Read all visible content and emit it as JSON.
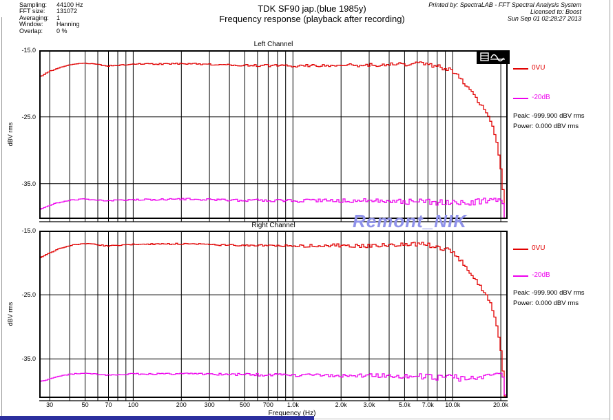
{
  "header": {
    "params": [
      {
        "label": "Sampling:",
        "value": "44100 Hz"
      },
      {
        "label": "FFT size:",
        "value": "131072"
      },
      {
        "label": "Averaging:",
        "value": "1"
      },
      {
        "label": "Window:",
        "value": "Hanning"
      },
      {
        "label": "Overlap:",
        "value": "0 %"
      }
    ],
    "title_line1": "TDK SF90 jap.(blue 1985y)",
    "title_line2": "Frequency response (playback after recording)",
    "print_info": [
      "Printed by: SpectraLAB - FFT Spectral Analysis System",
      "Licensed to: Boost",
      "Sun Sep 01 02:28:27 2013"
    ]
  },
  "watermark": {
    "text": "Remont_NIK",
    "color": "#8f92ea"
  },
  "colors": {
    "trace_red": "#e10000",
    "trace_magenta": "#ee00ee",
    "grid": "#000000",
    "footer_bar": "#2c2f9e"
  },
  "xaxis": {
    "label": "Frequency (Hz)",
    "scale": "log",
    "range_hz": [
      25.8,
      22100
    ],
    "ticks": [
      {
        "f": 30,
        "label": "30"
      },
      {
        "f": 50,
        "label": "50"
      },
      {
        "f": 70,
        "label": "70"
      },
      {
        "f": 100,
        "label": "100"
      },
      {
        "f": 200,
        "label": "200"
      },
      {
        "f": 300,
        "label": "300"
      },
      {
        "f": 500,
        "label": "500"
      },
      {
        "f": 700,
        "label": "700"
      },
      {
        "f": 1000,
        "label": "1.0k"
      },
      {
        "f": 2000,
        "label": "2.0k"
      },
      {
        "f": 3000,
        "label": "3.0k"
      },
      {
        "f": 5000,
        "label": "5.0k"
      },
      {
        "f": 7000,
        "label": "7.0k"
      },
      {
        "f": 10000,
        "label": "10.0k"
      },
      {
        "f": 20000,
        "label": "20.0k"
      }
    ],
    "gridlines_hz": [
      30,
      40,
      50,
      60,
      70,
      80,
      90,
      100,
      200,
      300,
      400,
      500,
      600,
      700,
      800,
      900,
      1000,
      2000,
      3000,
      4000,
      5000,
      6000,
      7000,
      8000,
      9000,
      10000,
      20000
    ]
  },
  "chart_data": [
    {
      "type": "line",
      "title": "Left Channel",
      "ylabel": "dBV rms",
      "yticks": [
        "-15.0",
        "-25.0",
        "-35.0"
      ],
      "ytick_values": [
        -15,
        -25,
        -35
      ],
      "ylim": [
        -40.3,
        -15
      ],
      "grid": true,
      "legend_position": "right",
      "legend": [
        {
          "name": "0VU",
          "color": "#e10000"
        },
        {
          "name": "-20dB",
          "color": "#ee00ee"
        }
      ],
      "peak_text": "Peak: -999.900 dBV rms",
      "power_text": "Power: 0.000 dBV rms",
      "series": [
        {
          "name": "0VU",
          "color": "#e10000",
          "seed": 3,
          "points_f_db_ripple": [
            [
              26,
              -18.9,
              0.05
            ],
            [
              30,
              -18.1,
              0.05
            ],
            [
              34,
              -17.6,
              0.05
            ],
            [
              40,
              -17.15,
              0.05
            ],
            [
              48,
              -16.95,
              0.05
            ],
            [
              58,
              -17.1,
              0.08
            ],
            [
              68,
              -17.35,
              0.08
            ],
            [
              80,
              -17.25,
              0.08
            ],
            [
              95,
              -17.1,
              0.08
            ],
            [
              120,
              -17.05,
              0.08
            ],
            [
              160,
              -17.05,
              0.1
            ],
            [
              200,
              -17.0,
              0.1
            ],
            [
              260,
              -17.05,
              0.12
            ],
            [
              350,
              -17.15,
              0.12
            ],
            [
              500,
              -17.25,
              0.15
            ],
            [
              700,
              -17.3,
              0.18
            ],
            [
              1000,
              -17.35,
              0.2
            ],
            [
              1400,
              -17.3,
              0.22
            ],
            [
              2000,
              -17.25,
              0.25
            ],
            [
              2800,
              -17.3,
              0.3
            ],
            [
              4000,
              -17.2,
              0.3
            ],
            [
              5000,
              -17.1,
              0.3
            ],
            [
              6300,
              -17.0,
              0.35
            ],
            [
              8000,
              -17.4,
              0.4
            ],
            [
              9000,
              -17.8,
              0.4
            ],
            [
              10000,
              -18.3,
              0.35
            ],
            [
              11000,
              -19.2,
              0.3
            ],
            [
              12000,
              -20.3,
              0.3
            ],
            [
              13000,
              -21.3,
              0.3
            ],
            [
              14000,
              -22.3,
              0.3
            ],
            [
              15000,
              -23.3,
              0.25
            ],
            [
              16000,
              -24.3,
              0.25
            ],
            [
              17000,
              -25.4,
              0.2
            ],
            [
              18000,
              -27.2,
              0.2
            ],
            [
              19000,
              -29.8,
              0.15
            ],
            [
              19800,
              -32.8,
              0.1
            ],
            [
              20400,
              -36.0,
              0.1
            ],
            [
              20800,
              -38.8,
              0.05
            ],
            [
              21200,
              -41.5,
              0
            ]
          ]
        },
        {
          "name": "-20dB",
          "color": "#ee00ee",
          "seed": 7,
          "points_f_db_ripple": [
            [
              26,
              -38.8,
              0.05
            ],
            [
              30,
              -38.2,
              0.05
            ],
            [
              34,
              -37.8,
              0.06
            ],
            [
              40,
              -37.5,
              0.06
            ],
            [
              48,
              -37.3,
              0.08
            ],
            [
              58,
              -37.45,
              0.08
            ],
            [
              68,
              -37.6,
              0.08
            ],
            [
              80,
              -37.5,
              0.1
            ],
            [
              100,
              -37.4,
              0.1
            ],
            [
              140,
              -37.4,
              0.12
            ],
            [
              200,
              -37.3,
              0.15
            ],
            [
              300,
              -37.4,
              0.15
            ],
            [
              450,
              -37.5,
              0.18
            ],
            [
              700,
              -37.55,
              0.2
            ],
            [
              1000,
              -37.6,
              0.22
            ],
            [
              1500,
              -37.5,
              0.25
            ],
            [
              2200,
              -37.55,
              0.3
            ],
            [
              3200,
              -37.6,
              0.35
            ],
            [
              4500,
              -37.8,
              0.45
            ],
            [
              6000,
              -37.6,
              0.4
            ],
            [
              8000,
              -37.8,
              0.45
            ],
            [
              10000,
              -37.7,
              0.45
            ],
            [
              12000,
              -38.0,
              0.5
            ],
            [
              14000,
              -37.8,
              0.5
            ],
            [
              16000,
              -37.6,
              0.45
            ],
            [
              18000,
              -37.4,
              0.4
            ],
            [
              19500,
              -37.2,
              0.3
            ],
            [
              20300,
              -37.6,
              0.2
            ],
            [
              20800,
              -39.0,
              0.1
            ],
            [
              21200,
              -41.5,
              0
            ]
          ]
        }
      ]
    },
    {
      "type": "line",
      "title": "Right Channel",
      "ylabel": "dBV rms",
      "yticks": [
        "-15.0",
        "-25.0",
        "-35.0"
      ],
      "ytick_values": [
        -15,
        -25,
        -35
      ],
      "ylim": [
        -41.1,
        -15
      ],
      "grid": true,
      "legend_position": "right",
      "legend": [
        {
          "name": "0VU",
          "color": "#e10000"
        },
        {
          "name": "-20dB",
          "color": "#ee00ee"
        }
      ],
      "peak_text": "Peak: -999.900 dBV rms",
      "power_text": "Power: 0.000 dBV rms",
      "series": [
        {
          "name": "0VU",
          "color": "#e10000",
          "seed": 11,
          "points_f_db_ripple": [
            [
              26,
              -19.2,
              0.05
            ],
            [
              30,
              -18.4,
              0.05
            ],
            [
              34,
              -17.8,
              0.05
            ],
            [
              40,
              -17.3,
              0.05
            ],
            [
              48,
              -17.0,
              0.05
            ],
            [
              58,
              -17.15,
              0.08
            ],
            [
              68,
              -17.4,
              0.08
            ],
            [
              80,
              -17.3,
              0.08
            ],
            [
              95,
              -17.15,
              0.08
            ],
            [
              120,
              -17.1,
              0.1
            ],
            [
              160,
              -17.1,
              0.1
            ],
            [
              200,
              -17.05,
              0.12
            ],
            [
              260,
              -17.1,
              0.12
            ],
            [
              350,
              -17.2,
              0.15
            ],
            [
              500,
              -17.3,
              0.15
            ],
            [
              700,
              -17.35,
              0.18
            ],
            [
              1000,
              -17.4,
              0.2
            ],
            [
              1400,
              -17.35,
              0.25
            ],
            [
              2000,
              -17.3,
              0.28
            ],
            [
              2800,
              -17.35,
              0.3
            ],
            [
              4000,
              -17.25,
              0.3
            ],
            [
              5000,
              -17.15,
              0.32
            ],
            [
              6300,
              -17.1,
              0.35
            ],
            [
              8000,
              -17.5,
              0.4
            ],
            [
              9000,
              -17.9,
              0.4
            ],
            [
              10000,
              -18.5,
              0.35
            ],
            [
              11000,
              -19.5,
              0.3
            ],
            [
              12000,
              -20.7,
              0.3
            ],
            [
              13000,
              -21.8,
              0.3
            ],
            [
              14000,
              -22.9,
              0.3
            ],
            [
              15000,
              -24.0,
              0.25
            ],
            [
              16000,
              -25.0,
              0.2
            ],
            [
              17000,
              -26.3,
              0.2
            ],
            [
              18000,
              -28.2,
              0.15
            ],
            [
              19000,
              -30.8,
              0.12
            ],
            [
              19800,
              -33.8,
              0.1
            ],
            [
              20400,
              -37.0,
              0.08
            ],
            [
              20800,
              -39.5,
              0.05
            ],
            [
              21200,
              -42,
              0
            ]
          ]
        },
        {
          "name": "-20dB",
          "color": "#ee00ee",
          "seed": 17,
          "points_f_db_ripple": [
            [
              26,
              -38.5,
              0.05
            ],
            [
              30,
              -38.1,
              0.05
            ],
            [
              34,
              -37.7,
              0.06
            ],
            [
              40,
              -37.4,
              0.06
            ],
            [
              48,
              -37.25,
              0.08
            ],
            [
              58,
              -37.4,
              0.08
            ],
            [
              68,
              -37.55,
              0.08
            ],
            [
              80,
              -37.45,
              0.1
            ],
            [
              100,
              -37.35,
              0.1
            ],
            [
              140,
              -37.35,
              0.12
            ],
            [
              200,
              -37.3,
              0.15
            ],
            [
              300,
              -37.4,
              0.15
            ],
            [
              450,
              -37.45,
              0.18
            ],
            [
              700,
              -37.5,
              0.2
            ],
            [
              1000,
              -37.55,
              0.22
            ],
            [
              1500,
              -37.5,
              0.25
            ],
            [
              2200,
              -37.6,
              0.3
            ],
            [
              3200,
              -37.65,
              0.38
            ],
            [
              4500,
              -37.9,
              0.5
            ],
            [
              6000,
              -37.7,
              0.45
            ],
            [
              8000,
              -37.9,
              0.5
            ],
            [
              10000,
              -37.8,
              0.5
            ],
            [
              12000,
              -38.15,
              0.55
            ],
            [
              14000,
              -37.9,
              0.5
            ],
            [
              16000,
              -37.6,
              0.45
            ],
            [
              18000,
              -37.35,
              0.35
            ],
            [
              19500,
              -37.2,
              0.25
            ],
            [
              20300,
              -37.7,
              0.15
            ],
            [
              20800,
              -39.2,
              0.1
            ],
            [
              21200,
              -42,
              0
            ]
          ]
        }
      ]
    }
  ]
}
